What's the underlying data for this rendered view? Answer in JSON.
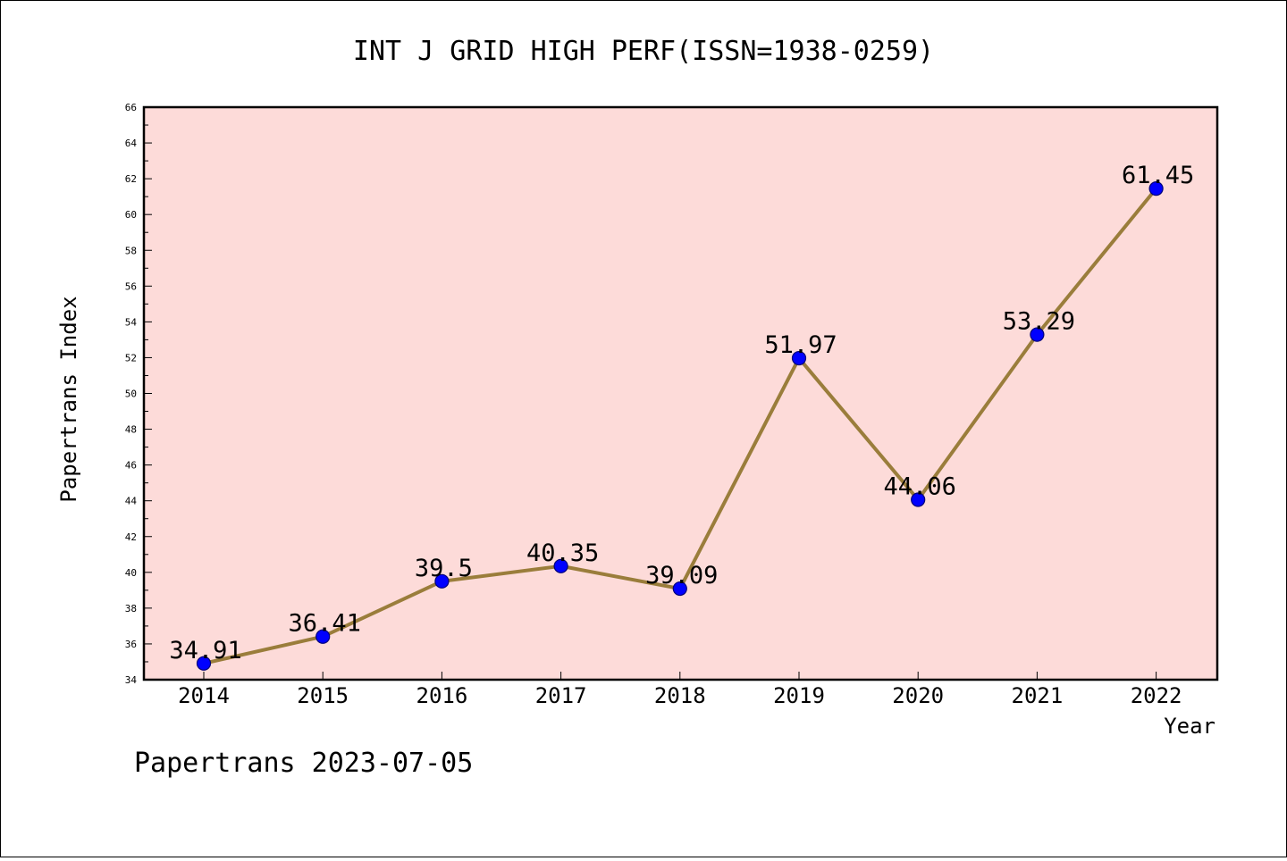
{
  "chart_data": {
    "type": "line",
    "title": "INT J GRID HIGH PERF(ISSN=1938-0259)",
    "xlabel": "Year",
    "ylabel": "Papertrans Index",
    "categories": [
      "2014",
      "2015",
      "2016",
      "2017",
      "2018",
      "2019",
      "2020",
      "2021",
      "2022"
    ],
    "values": [
      34.91,
      36.41,
      39.5,
      40.35,
      39.09,
      51.97,
      44.06,
      53.29,
      61.45
    ],
    "data_labels": [
      "34.91",
      "36.41",
      "39.5",
      "40.35",
      "39.09",
      "51.97",
      "44.06",
      "53.29",
      "61.45"
    ],
    "ylim": [
      34,
      66
    ],
    "yticks": [
      "34",
      "36",
      "38",
      "40",
      "42",
      "44",
      "46",
      "48",
      "50",
      "52",
      "54",
      "56",
      "58",
      "60",
      "62",
      "64",
      "66"
    ],
    "grid": false,
    "legend": "none",
    "colors": {
      "plot_background": "#fddbd9",
      "line": "#9a7d3b",
      "marker": "#0000ff",
      "marker_edge": "#00007a"
    }
  },
  "footer": {
    "source": "Papertrans 2023-07-05"
  }
}
